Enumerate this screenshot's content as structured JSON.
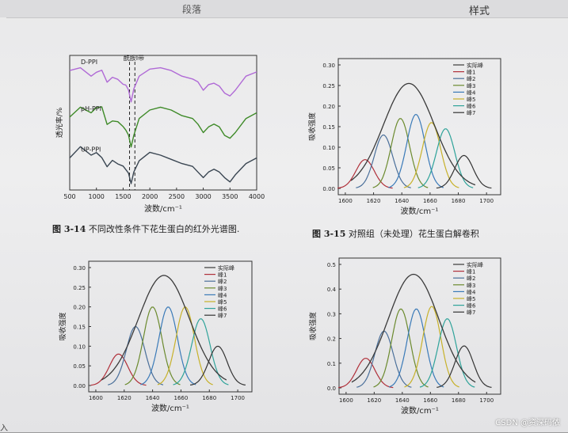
{
  "toolbar": {
    "tab_left": "段落",
    "tab_right": "样式"
  },
  "figures": [
    {
      "id": "fig-3-14",
      "caption_num": "图 3-14",
      "caption_text": "不同改性条件下花生蛋白的红外光谱图",
      "annotation": "酰胺I带",
      "ylabel": "透光率/%",
      "xlabel": "波数/cm⁻¹",
      "xticks": [
        500,
        1000,
        1500,
        2000,
        2500,
        3000,
        3500,
        4000
      ],
      "series": [
        {
          "name": "D-PPI",
          "color": "#b06ad6"
        },
        {
          "name": "pH-PPI",
          "color": "#3e8a28"
        },
        {
          "name": "UP-PPI",
          "color": "#3a4652"
        }
      ]
    }
  ],
  "chart_data": [
    {
      "type": "line",
      "title": "",
      "xlabel": "波数/cm⁻¹",
      "ylabel": "透光率/%",
      "xlim": [
        500,
        4000
      ],
      "x": [
        500,
        700,
        900,
        1000,
        1100,
        1200,
        1300,
        1400,
        1500,
        1550,
        1600,
        1650,
        1700,
        1800,
        2000,
        2200,
        2400,
        2600,
        2800,
        2900,
        3000,
        3100,
        3200,
        3300,
        3400,
        3500,
        3600,
        3800,
        4000
      ],
      "series": [
        {
          "name": "D-PPI",
          "values": [
            0.78,
            0.8,
            0.74,
            0.79,
            0.76,
            0.72,
            0.71,
            0.74,
            0.66,
            0.7,
            0.62,
            0.58,
            0.65,
            0.74,
            0.79,
            0.8,
            0.78,
            0.74,
            0.72,
            0.7,
            0.64,
            0.68,
            0.69,
            0.67,
            0.62,
            0.6,
            0.64,
            0.74,
            0.77
          ]
        },
        {
          "name": "pH-PPI",
          "values": [
            0.45,
            0.52,
            0.48,
            0.54,
            0.5,
            0.42,
            0.4,
            0.44,
            0.36,
            0.38,
            0.3,
            0.26,
            0.32,
            0.44,
            0.5,
            0.52,
            0.5,
            0.46,
            0.44,
            0.4,
            0.34,
            0.38,
            0.4,
            0.38,
            0.32,
            0.3,
            0.34,
            0.44,
            0.48
          ]
        },
        {
          "name": "UP-PPI",
          "values": [
            0.16,
            0.24,
            0.18,
            0.22,
            0.14,
            0.12,
            0.12,
            0.14,
            0.08,
            0.1,
            0.03,
            0.0,
            0.06,
            0.14,
            0.2,
            0.18,
            0.15,
            0.12,
            0.1,
            0.06,
            0.02,
            0.06,
            0.08,
            0.06,
            0.02,
            -0.01,
            0.04,
            0.12,
            0.16
          ]
        }
      ],
      "xticks": [
        500,
        1000,
        1500,
        2000,
        2500,
        3000,
        3500,
        4000
      ],
      "grid": false
    },
    {
      "type": "line",
      "title": "",
      "xlabel": "波数/cm⁻¹",
      "ylabel": "吸收强度",
      "xlim": [
        1595,
        1710
      ],
      "ylim": [
        0,
        0.3
      ],
      "yticks": [
        "0.30",
        "0.25",
        "0.20",
        "0.15",
        "0.10",
        "0.05",
        "0.00"
      ],
      "xticks": [
        1600,
        1620,
        1640,
        1660,
        1680,
        1700
      ],
      "legend_position": "top-right",
      "envelope": {
        "name": "实际峰",
        "center": 1645,
        "height": 0.255
      },
      "peaks": [
        {
          "name": "峰1",
          "center": 1614,
          "height": 0.07
        },
        {
          "name": "峰2",
          "center": 1627,
          "height": 0.13
        },
        {
          "name": "峰3",
          "center": 1639,
          "height": 0.17
        },
        {
          "name": "峰4",
          "center": 1650,
          "height": 0.18
        },
        {
          "name": "峰5",
          "center": 1661,
          "height": 0.16
        },
        {
          "name": "峰6",
          "center": 1671,
          "height": 0.145
        },
        {
          "name": "峰7",
          "center": 1684,
          "height": 0.08
        }
      ]
    },
    {
      "type": "line",
      "title": "",
      "xlabel": "波数/cm⁻¹",
      "ylabel": "吸收强度",
      "xlim": [
        1595,
        1710
      ],
      "ylim": [
        0,
        0.3
      ],
      "yticks": [
        "0.30",
        "0.25",
        "0.20",
        "0.15",
        "0.10",
        "0.05",
        "0.00"
      ],
      "xticks": [
        1600,
        1620,
        1640,
        1660,
        1680,
        1700
      ],
      "legend_position": "top-right",
      "envelope": {
        "name": "实际峰",
        "center": 1648,
        "height": 0.28
      },
      "peaks": [
        {
          "name": "峰1",
          "center": 1616,
          "height": 0.08
        },
        {
          "name": "峰2",
          "center": 1628,
          "height": 0.15
        },
        {
          "name": "峰3",
          "center": 1640,
          "height": 0.2
        },
        {
          "name": "峰4",
          "center": 1651,
          "height": 0.2
        },
        {
          "name": "峰5",
          "center": 1663,
          "height": 0.2
        },
        {
          "name": "峰6",
          "center": 1674,
          "height": 0.17
        },
        {
          "name": "峰7",
          "center": 1686,
          "height": 0.1
        }
      ]
    },
    {
      "type": "line",
      "title": "",
      "xlabel": "波数/cm⁻¹",
      "ylabel": "吸收强度",
      "xlim": [
        1595,
        1710
      ],
      "ylim": [
        0,
        0.5
      ],
      "yticks": [
        "0.5",
        "0.4",
        "0.3",
        "0.2",
        "0.1",
        "0.0"
      ],
      "xticks": [
        1600,
        1620,
        1640,
        1660,
        1680,
        1700
      ],
      "legend_position": "top-right",
      "envelope": {
        "name": "实际峰",
        "center": 1648,
        "height": 0.46
      },
      "peaks": [
        {
          "name": "峰1",
          "center": 1614,
          "height": 0.12
        },
        {
          "name": "峰2",
          "center": 1627,
          "height": 0.23
        },
        {
          "name": "峰3",
          "center": 1639,
          "height": 0.32
        },
        {
          "name": "峰4",
          "center": 1650,
          "height": 0.32
        },
        {
          "name": "峰5",
          "center": 1661,
          "height": 0.33
        },
        {
          "name": "峰6",
          "center": 1672,
          "height": 0.28
        },
        {
          "name": "峰7",
          "center": 1684,
          "height": 0.17
        }
      ]
    }
  ],
  "captions": {
    "fig314": {
      "num": "图 3-14",
      "text": "不同改性条件下花生蛋白的红外光谱图."
    },
    "fig315": {
      "num": "图 3-15",
      "text": "对照组（未处理）花生蛋白解卷积"
    }
  },
  "colors": {
    "peak_colors": [
      "#b0303a",
      "#4a6f9a",
      "#6b8a2e",
      "#3a7ab8",
      "#c7b12a",
      "#2fa39a",
      "#333333"
    ],
    "envelope": "#3a3a3a"
  },
  "watermark": "CSDN @资深码侬",
  "corner_glyph": "入"
}
